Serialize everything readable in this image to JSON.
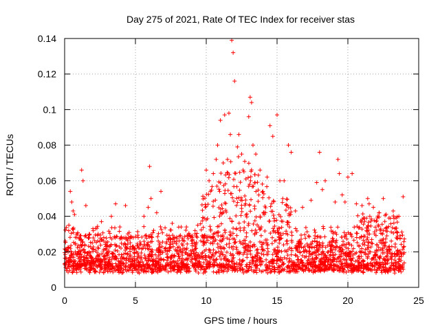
{
  "chart_data": {
    "type": "scatter",
    "title": "Day 275 of 2021, Rate Of TEC Index for receiver stas",
    "xlabel": "GPS time / hours",
    "ylabel": "ROTI / TECUs",
    "xlim": [
      0,
      25
    ],
    "ylim": [
      0,
      0.14
    ],
    "xticks": [
      "0",
      "5",
      "10",
      "15",
      "20",
      "25"
    ],
    "yticks": [
      "0",
      "0.02",
      "0.04",
      "0.06",
      "0.08",
      "0.1",
      "0.12",
      "0.14"
    ],
    "grid": true,
    "marker": "+",
    "color": "#ff0000",
    "series": [
      {
        "name": "ROTI",
        "x": [
          0.1,
          0.3,
          0.4,
          0.5,
          0.6,
          0.7,
          0.9,
          1.2,
          1.3,
          1.5,
          2.0,
          2.6,
          3.3,
          3.6,
          3.9,
          4.3,
          5.6,
          5.9,
          6.0,
          6.1,
          6.5,
          6.8,
          7.6,
          8.6,
          9.4,
          10.0,
          10.2,
          10.3,
          10.5,
          10.7,
          10.8,
          11.0,
          11.2,
          11.3,
          11.5,
          11.6,
          11.7,
          11.8,
          11.9,
          12.0,
          12.2,
          12.3,
          12.5,
          12.6,
          12.8,
          13.0,
          13.1,
          13.2,
          13.3,
          13.5,
          13.8,
          14.0,
          14.3,
          14.5,
          14.7,
          15.0,
          15.2,
          15.5,
          15.8,
          16.0,
          16.3,
          16.8,
          17.4,
          17.8,
          18.0,
          18.2,
          18.4,
          19.1,
          19.3,
          19.4,
          19.6,
          19.8,
          20.0,
          20.3,
          20.6,
          21.0,
          21.4,
          21.5,
          21.8,
          22.2,
          22.5,
          22.9,
          23.2,
          23.4,
          23.6,
          23.9
        ],
        "y": [
          0.021,
          0.035,
          0.054,
          0.048,
          0.043,
          0.041,
          0.03,
          0.066,
          0.06,
          0.046,
          0.033,
          0.037,
          0.04,
          0.047,
          0.034,
          0.046,
          0.04,
          0.045,
          0.068,
          0.05,
          0.042,
          0.054,
          0.036,
          0.034,
          0.035,
          0.066,
          0.06,
          0.054,
          0.064,
          0.072,
          0.08,
          0.094,
          0.07,
          0.097,
          0.072,
          0.098,
          0.086,
          0.139,
          0.132,
          0.116,
          0.079,
          0.086,
          0.075,
          0.066,
          0.061,
          0.096,
          0.107,
          0.104,
          0.08,
          0.075,
          0.066,
          0.054,
          0.062,
          0.091,
          0.085,
          0.097,
          0.06,
          0.06,
          0.08,
          0.076,
          0.043,
          0.045,
          0.049,
          0.059,
          0.076,
          0.055,
          0.06,
          0.048,
          0.072,
          0.064,
          0.052,
          0.048,
          0.062,
          0.064,
          0.047,
          0.046,
          0.05,
          0.047,
          0.045,
          0.042,
          0.05,
          0.039,
          0.043,
          0.039,
          0.04,
          0.051
        ]
      }
    ]
  }
}
